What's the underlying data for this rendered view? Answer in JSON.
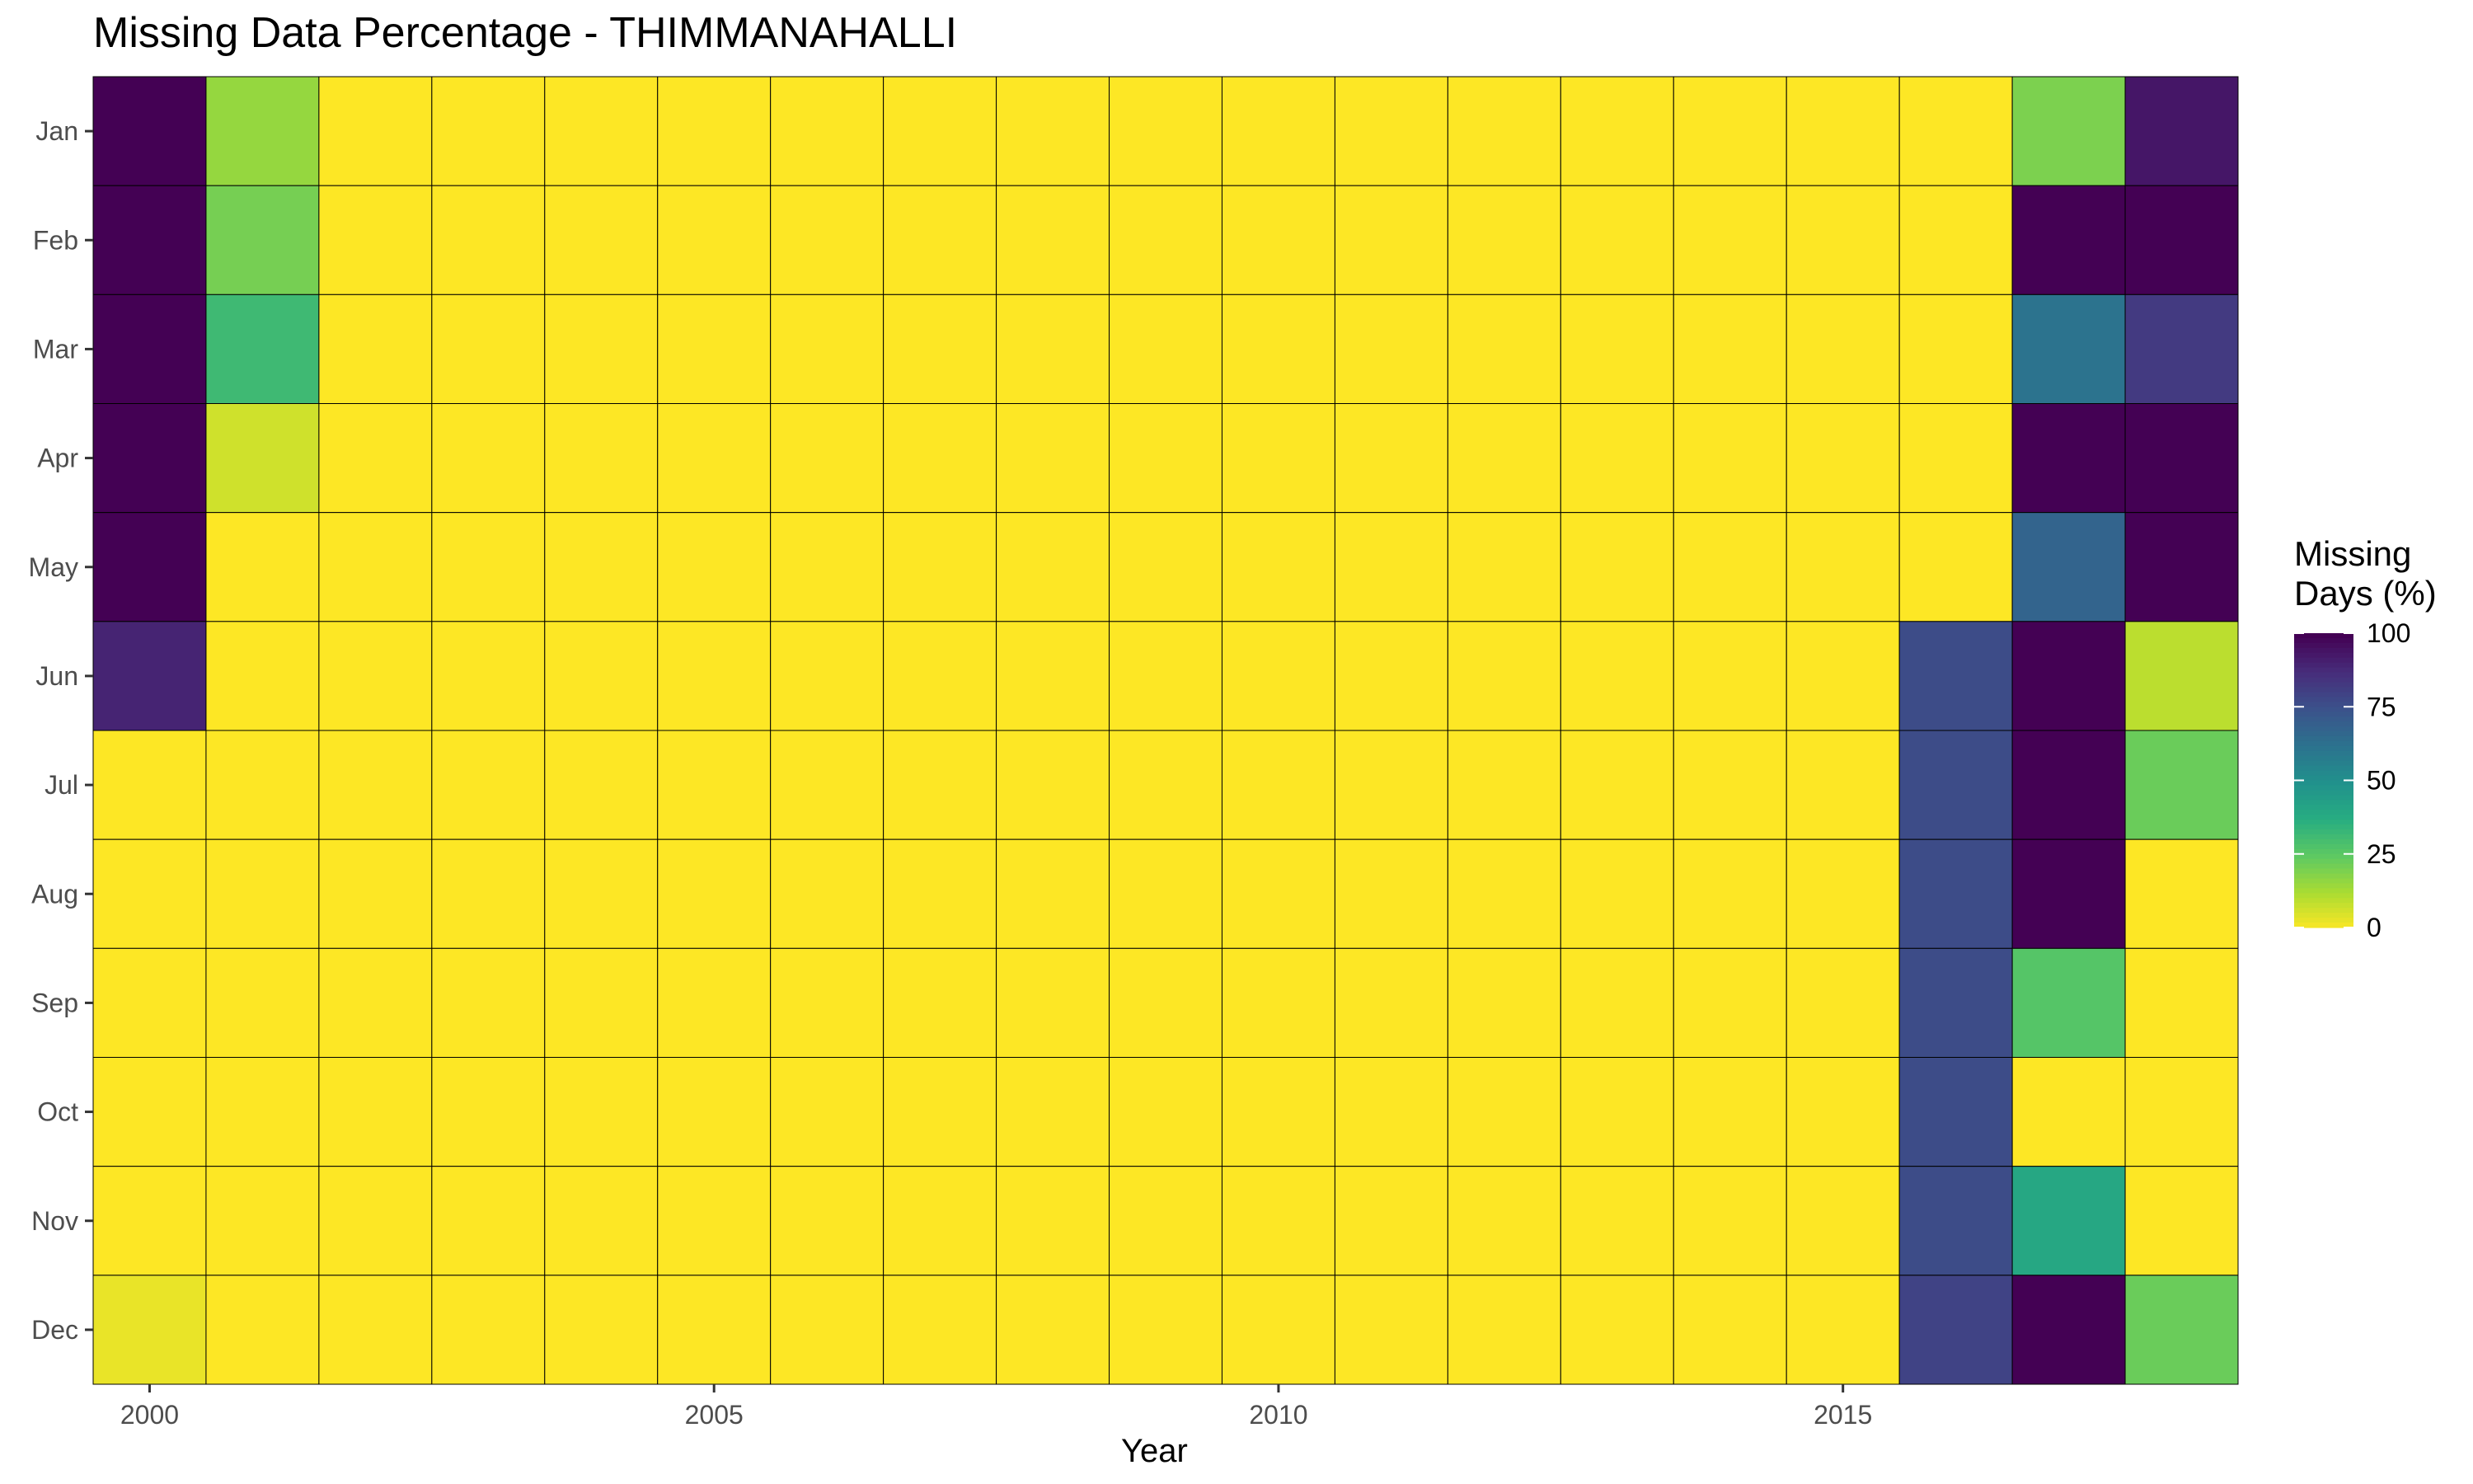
{
  "chart_data": {
    "type": "heatmap",
    "title": "Missing Data Percentage - THIMMANAHALLI",
    "xlabel": "Year",
    "ylabel": "",
    "x": [
      2000,
      2001,
      2002,
      2003,
      2004,
      2005,
      2006,
      2007,
      2008,
      2009,
      2010,
      2011,
      2012,
      2013,
      2014,
      2015,
      2016,
      2017,
      2018
    ],
    "x_ticks": [
      "2000",
      "2005",
      "2010",
      "2015"
    ],
    "y": [
      "Jan",
      "Feb",
      "Mar",
      "Apr",
      "May",
      "Jun",
      "Jul",
      "Aug",
      "Sep",
      "Oct",
      "Nov",
      "Dec"
    ],
    "values": [
      [
        100,
        16,
        0,
        0,
        0,
        0,
        0,
        0,
        0,
        0,
        0,
        0,
        0,
        0,
        0,
        0,
        0,
        20,
        94
      ],
      [
        100,
        21,
        0,
        0,
        0,
        0,
        0,
        0,
        0,
        0,
        0,
        0,
        0,
        0,
        0,
        0,
        0,
        100,
        100
      ],
      [
        100,
        32,
        0,
        0,
        0,
        0,
        0,
        0,
        0,
        0,
        0,
        0,
        0,
        0,
        0,
        0,
        0,
        62,
        83
      ],
      [
        100,
        7,
        0,
        0,
        0,
        0,
        0,
        0,
        0,
        0,
        0,
        0,
        0,
        0,
        0,
        0,
        0,
        100,
        100
      ],
      [
        100,
        0,
        0,
        0,
        0,
        0,
        0,
        0,
        0,
        0,
        0,
        0,
        0,
        0,
        0,
        0,
        0,
        68,
        100
      ],
      [
        90,
        0,
        0,
        0,
        0,
        0,
        0,
        0,
        0,
        0,
        0,
        0,
        0,
        0,
        0,
        0,
        77,
        100,
        10
      ],
      [
        0,
        0,
        0,
        0,
        0,
        0,
        0,
        0,
        0,
        0,
        0,
        0,
        0,
        0,
        0,
        0,
        77,
        100,
        23
      ],
      [
        0,
        0,
        0,
        0,
        0,
        0,
        0,
        0,
        0,
        0,
        0,
        0,
        0,
        0,
        0,
        0,
        77,
        100,
        0
      ],
      [
        0,
        0,
        0,
        0,
        0,
        0,
        0,
        0,
        0,
        0,
        0,
        0,
        0,
        0,
        0,
        0,
        77,
        27,
        0
      ],
      [
        0,
        0,
        0,
        0,
        0,
        0,
        0,
        0,
        0,
        0,
        0,
        0,
        0,
        0,
        0,
        0,
        77,
        0,
        0
      ],
      [
        0,
        0,
        0,
        0,
        0,
        0,
        0,
        0,
        0,
        0,
        0,
        0,
        0,
        0,
        0,
        0,
        77,
        40,
        0
      ],
      [
        3,
        0,
        0,
        0,
        0,
        0,
        0,
        0,
        0,
        0,
        0,
        0,
        0,
        0,
        0,
        0,
        80,
        100,
        23
      ]
    ],
    "legend": {
      "title_lines": [
        "Missing",
        "Days (%)"
      ],
      "ticks": [
        0,
        25,
        50,
        75,
        100
      ],
      "range": [
        0,
        100
      ],
      "placement": "right",
      "colormap": "viridis (reversed: 0 = yellow, 100 = dark purple)"
    },
    "grid": false,
    "cell_border_color": "#000000"
  }
}
